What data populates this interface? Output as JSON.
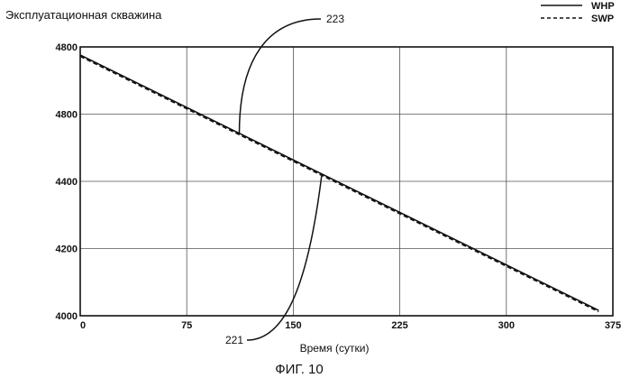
{
  "chart_data": {
    "type": "line",
    "title": "Эксплуатационная скважина",
    "xlabel": "Время (сутки)",
    "ylabel": "",
    "x_ticks": [
      "0",
      "75",
      "150",
      "225",
      "300",
      "375"
    ],
    "y_ticks": [
      "4000",
      "4200",
      "4400",
      "4800",
      "4800"
    ],
    "xlim": [
      0,
      375
    ],
    "ylim": [
      0,
      1
    ],
    "grid": true,
    "legend_position": "top-right",
    "series": [
      {
        "name": "WHP",
        "style": "solid",
        "x": [
          0,
          365
        ],
        "y": [
          0.97,
          0.02
        ]
      },
      {
        "name": "SWP",
        "style": "dashed",
        "x": [
          0,
          365
        ],
        "y": [
          0.965,
          0.015
        ]
      }
    ],
    "annotations": [
      {
        "label": "223",
        "points_to_x": 112,
        "points_to_series": "WHP"
      },
      {
        "label": "221",
        "points_to_x": 170,
        "points_to_series": "SWP"
      }
    ],
    "caption": "ФИГ. 10"
  }
}
